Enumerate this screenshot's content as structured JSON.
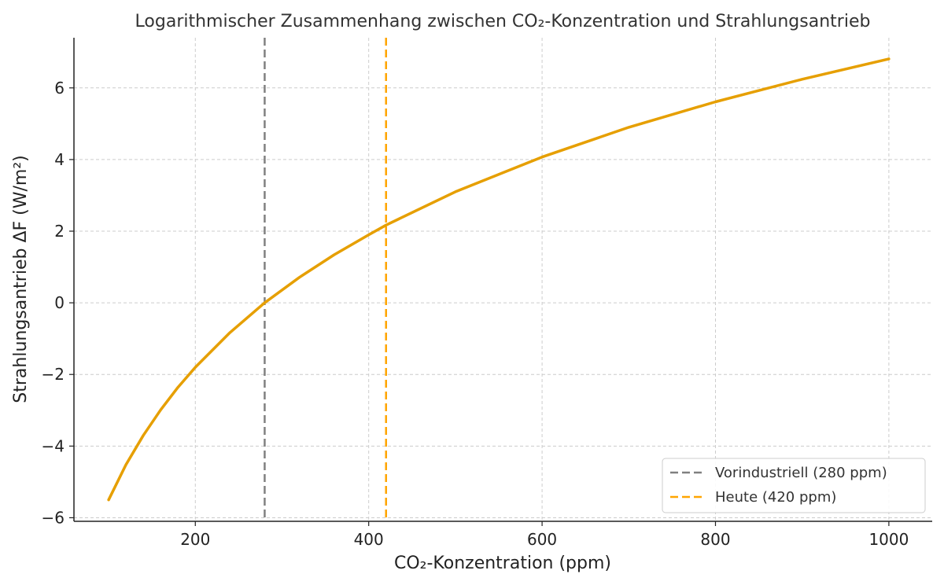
{
  "chart_data": {
    "type": "line",
    "title": "Logarithmischer Zusammenhang zwischen CO₂-Konzentration und Strahlungsantrieb",
    "xlabel": "CO₂-Konzentration (ppm)",
    "ylabel": "Strahlungsantrieb ΔF (W/m²)",
    "xlim": [
      60,
      1050
    ],
    "ylim": [
      -6.1,
      7.4
    ],
    "xticks": [
      200,
      400,
      600,
      800,
      1000
    ],
    "xtick_labels": [
      "200",
      "400",
      "600",
      "800",
      "1000"
    ],
    "yticks": [
      -6,
      -4,
      -2,
      0,
      2,
      4,
      6
    ],
    "ytick_labels": [
      "−6",
      "−4",
      "−2",
      "0",
      "2",
      "4",
      "6"
    ],
    "grid": true,
    "legend_position": "lower-right",
    "series": [
      {
        "color": "#e69f00",
        "x": [
          100,
          120,
          140,
          160,
          180,
          200,
          240,
          280,
          320,
          360,
          400,
          420,
          500,
          600,
          700,
          800,
          900,
          1000
        ],
        "y": [
          -5.5,
          -4.52,
          -3.7,
          -2.99,
          -2.36,
          -1.8,
          -0.83,
          0.0,
          0.71,
          1.34,
          1.9,
          2.17,
          3.1,
          4.07,
          4.9,
          5.61,
          6.24,
          6.81
        ]
      }
    ],
    "reference_lines": [
      {
        "name": "Vorindustriell (280 ppm)",
        "x": 280,
        "color": "#808080"
      },
      {
        "name": "Heute (420 ppm)",
        "x": 420,
        "color": "#ffa500"
      }
    ]
  }
}
